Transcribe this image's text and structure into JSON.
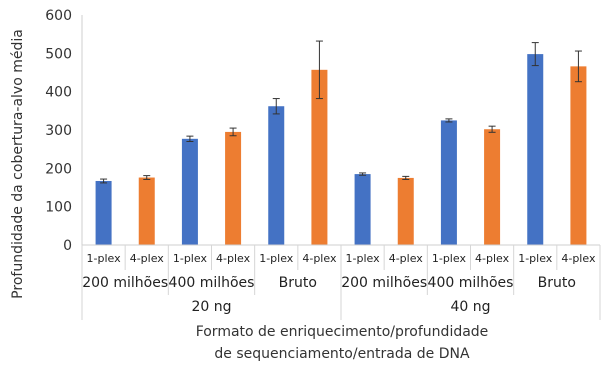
{
  "chart_data": {
    "type": "bar",
    "ylabel": "Profundidade da cobertura-alvo média",
    "xlabel_lines": [
      "Formato de enriquecimento/profundidade",
      "de sequenciamento/entrada de DNA"
    ],
    "ylim": [
      0,
      600
    ],
    "yticks": [
      0,
      100,
      200,
      300,
      400,
      500,
      600
    ],
    "grid": false,
    "colors": {
      "1-plex": "#4472c4",
      "4-plex": "#ed7d31"
    },
    "bars": [
      {
        "label": "1-plex",
        "series": "1-plex",
        "value": 167,
        "err": 5
      },
      {
        "label": "4-plex",
        "series": "4-plex",
        "value": 176,
        "err": 5
      },
      {
        "label": "1-plex",
        "series": "1-plex",
        "value": 277,
        "err": 7
      },
      {
        "label": "4-plex",
        "series": "4-plex",
        "value": 295,
        "err": 10
      },
      {
        "label": "1-plex",
        "series": "1-plex",
        "value": 362,
        "err": 20
      },
      {
        "label": "4-plex",
        "series": "4-plex",
        "value": 457,
        "err": 75
      },
      {
        "label": "1-plex",
        "series": "1-plex",
        "value": 185,
        "err": 3
      },
      {
        "label": "4-plex",
        "series": "4-plex",
        "value": 175,
        "err": 4
      },
      {
        "label": "1-plex",
        "series": "1-plex",
        "value": 325,
        "err": 4
      },
      {
        "label": "4-plex",
        "series": "4-plex",
        "value": 302,
        "err": 8
      },
      {
        "label": "1-plex",
        "series": "1-plex",
        "value": 498,
        "err": 30
      },
      {
        "label": "4-plex",
        "series": "4-plex",
        "value": 466,
        "err": 40
      }
    ],
    "groups": [
      "200 milhões",
      "400 milhões",
      "Bruto",
      "200 milhões",
      "400 milhões",
      "Bruto"
    ],
    "supergroups": [
      "20 ng",
      "40 ng"
    ]
  }
}
